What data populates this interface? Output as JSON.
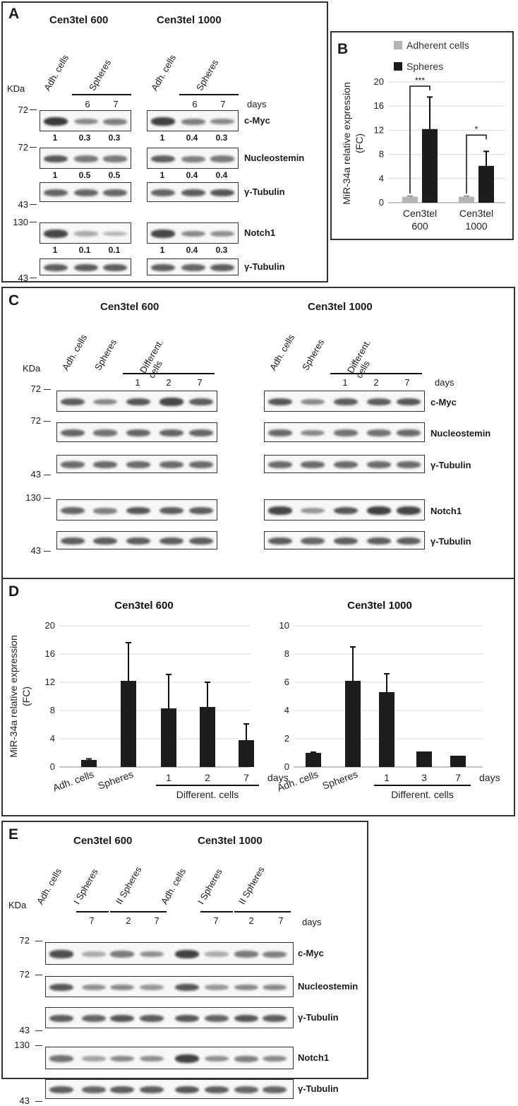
{
  "panelA": {
    "letter": "A",
    "kda": "KDa",
    "days": "days",
    "groups": [
      {
        "title": "Cen3tel 600",
        "lanes": [
          "Adh. cells",
          "Spheres"
        ],
        "daynums": [
          "6",
          "7"
        ],
        "rows": [
          {
            "label": "c-Myc",
            "mw": "72",
            "quant": [
              "1",
              "0.3",
              "0.3"
            ],
            "intensity": [
              1.0,
              0.45,
              0.5
            ]
          },
          {
            "label": "Nucleostemin",
            "mw": "72",
            "quant": [
              "1",
              "0.5",
              "0.5"
            ],
            "intensity": [
              0.8,
              0.55,
              0.55
            ]
          },
          {
            "label": "γ-Tubulin",
            "mw": "43",
            "quant": [],
            "intensity": [
              0.7,
              0.7,
              0.7
            ]
          },
          {
            "label": "Notch1",
            "mw": "130",
            "quant": [
              "1",
              "0.1",
              "0.1"
            ],
            "intensity": [
              0.9,
              0.2,
              0.15
            ]
          },
          {
            "label": "γ-Tubulin",
            "mw": "43",
            "quant": [],
            "intensity": [
              0.75,
              0.75,
              0.75
            ]
          }
        ]
      },
      {
        "title": "Cen3tel 1000",
        "lanes": [
          "Adh. cells",
          "Spheres"
        ],
        "daynums": [
          "6",
          "7"
        ],
        "rows": [
          {
            "label": "c-Myc",
            "mw": "",
            "quant": [
              "1",
              "0.4",
              "0.3"
            ],
            "intensity": [
              0.95,
              0.5,
              0.45
            ]
          },
          {
            "label": "Nucleostemin",
            "mw": "",
            "quant": [
              "1",
              "0.4",
              "0.4"
            ],
            "intensity": [
              0.75,
              0.5,
              0.55
            ]
          },
          {
            "label": "γ-Tubulin",
            "mw": "",
            "quant": [],
            "intensity": [
              0.7,
              0.75,
              0.8
            ]
          },
          {
            "label": "Notch1",
            "mw": "",
            "quant": [
              "1",
              "0.4",
              "0.3"
            ],
            "intensity": [
              0.9,
              0.45,
              0.4
            ]
          },
          {
            "label": "γ-Tubulin",
            "mw": "",
            "quant": [],
            "intensity": [
              0.75,
              0.7,
              0.75
            ]
          }
        ]
      }
    ]
  },
  "panelC": {
    "letter": "C",
    "kda": "KDa",
    "days": "days",
    "groups": [
      {
        "title": "Cen3tel 600",
        "lanes": [
          "Adh. cells",
          "Spheres",
          "Different. cells"
        ],
        "daynums": [
          "1",
          "2",
          "7"
        ],
        "rows": [
          {
            "label": "c-Myc",
            "mw": "72",
            "intensity": [
              0.75,
              0.45,
              0.8,
              0.9,
              0.75
            ]
          },
          {
            "label": "Nucleostemin",
            "mw": "72",
            "intensity": [
              0.7,
              0.6,
              0.7,
              0.7,
              0.7
            ]
          },
          {
            "label": "γ-Tubulin",
            "mw": "43",
            "intensity": [
              0.65,
              0.65,
              0.65,
              0.65,
              0.65
            ]
          },
          {
            "label": "Notch1",
            "mw": "130",
            "intensity": [
              0.7,
              0.5,
              0.8,
              0.75,
              0.75
            ]
          },
          {
            "label": "γ-Tubulin",
            "mw": "43",
            "intensity": [
              0.75,
              0.75,
              0.75,
              0.75,
              0.75
            ]
          }
        ]
      },
      {
        "title": "Cen3tel 1000",
        "lanes": [
          "Adh. cells",
          "Spheres",
          "Different. cells"
        ],
        "daynums": [
          "1",
          "2",
          "7"
        ],
        "rows": [
          {
            "label": "c-Myc",
            "mw": "",
            "intensity": [
              0.8,
              0.45,
              0.75,
              0.75,
              0.8
            ]
          },
          {
            "label": "Nucleostemin",
            "mw": "",
            "intensity": [
              0.65,
              0.45,
              0.6,
              0.6,
              0.65
            ]
          },
          {
            "label": "γ-Tubulin",
            "mw": "",
            "intensity": [
              0.65,
              0.65,
              0.65,
              0.65,
              0.65
            ]
          },
          {
            "label": "Notch1",
            "mw": "",
            "intensity": [
              0.9,
              0.35,
              0.8,
              0.95,
              0.9
            ]
          },
          {
            "label": "γ-Tubulin",
            "mw": "",
            "intensity": [
              0.75,
              0.7,
              0.75,
              0.75,
              0.75
            ]
          }
        ]
      }
    ]
  },
  "panelE": {
    "letter": "E",
    "kda": "KDa",
    "days": "days",
    "titles": [
      "Cen3tel 600",
      "Cen3tel 1000"
    ],
    "lanes": [
      "Adh. cells",
      "I Spheres",
      "II Spheres",
      "Adh. cells",
      "I Spheres",
      "II Spheres"
    ],
    "daynums": [
      "7",
      "2",
      "7",
      "7",
      "2",
      "7"
    ],
    "rows": [
      {
        "label": "c-Myc",
        "mw": "72",
        "intensity": [
          0.85,
          0.2,
          0.55,
          0.4,
          0.95,
          0.2,
          0.55,
          0.5
        ]
      },
      {
        "label": "Nucleostemin",
        "mw": "72",
        "intensity": [
          0.8,
          0.4,
          0.45,
          0.35,
          0.8,
          0.35,
          0.45,
          0.45
        ]
      },
      {
        "label": "γ-Tubulin",
        "mw": "43",
        "intensity": [
          0.75,
          0.7,
          0.8,
          0.75,
          0.8,
          0.7,
          0.8,
          0.75
        ]
      },
      {
        "label": "Notch1",
        "mw": "130",
        "intensity": [
          0.6,
          0.25,
          0.45,
          0.4,
          0.95,
          0.4,
          0.5,
          0.45
        ]
      },
      {
        "label": "γ-Tubulin",
        "mw": "43",
        "intensity": [
          0.75,
          0.7,
          0.75,
          0.75,
          0.8,
          0.75,
          0.7,
          0.7
        ]
      }
    ]
  },
  "chart_data": [
    {
      "panel": "B",
      "type": "bar",
      "categories": [
        "Cen3tel\n600",
        "Cen3tel\n1000"
      ],
      "series": [
        {
          "name": "Adherent cells",
          "color": "#b5b5b5",
          "values": [
            1.0,
            1.0
          ],
          "errors": [
            0.1,
            0.1
          ]
        },
        {
          "name": "Spheres",
          "color": "#1c1c1c",
          "values": [
            12.2,
            6.1
          ],
          "errors": [
            5.3,
            2.4
          ]
        }
      ],
      "ylabel": "MiR-34a relative expression\n(FC)",
      "ylim": [
        0,
        20
      ],
      "yticks": [
        0,
        4,
        8,
        12,
        16,
        20
      ],
      "annotations": [
        "***",
        "*"
      ],
      "legend": "top"
    },
    {
      "panel": "D",
      "type": "bar",
      "title": "Cen3tel 600",
      "categories": [
        "Adh. cells",
        "Spheres",
        "1",
        "2",
        "7"
      ],
      "values": [
        1.0,
        12.2,
        8.3,
        8.5,
        3.8
      ],
      "errors": [
        0.15,
        5.4,
        4.8,
        3.5,
        2.3
      ],
      "ylabel": "MiR-34a relative expression\n(FC)",
      "ylim": [
        0,
        20
      ],
      "yticks": [
        0,
        4,
        8,
        12,
        16,
        20
      ],
      "group_label": "Different. cells",
      "days_label": "days"
    },
    {
      "panel": "D",
      "type": "bar",
      "title": "Cen3tel 1000",
      "categories": [
        "Adh. cells",
        "Spheres",
        "1",
        "3",
        "7"
      ],
      "values": [
        1.0,
        6.1,
        5.3,
        1.1,
        0.8
      ],
      "errors": [
        0.05,
        2.4,
        1.3,
        0,
        0
      ],
      "ylim": [
        0,
        10
      ],
      "yticks": [
        0,
        2,
        4,
        6,
        8,
        10
      ],
      "group_label": "Different. cells",
      "days_label": "days"
    }
  ],
  "letters": {
    "B": "B",
    "D": "D"
  }
}
